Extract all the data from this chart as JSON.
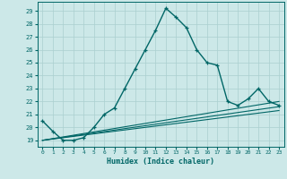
{
  "xlabel": "Humidex (Indice chaleur)",
  "bg_color": "#cce8e8",
  "grid_color": "#aacfcf",
  "line_color": "#006666",
  "xlim": [
    -0.5,
    23.5
  ],
  "ylim": [
    18.5,
    29.7
  ],
  "xticks": [
    0,
    1,
    2,
    3,
    4,
    5,
    6,
    7,
    8,
    9,
    10,
    11,
    12,
    13,
    14,
    15,
    16,
    17,
    18,
    19,
    20,
    21,
    22,
    23
  ],
  "yticks": [
    19,
    20,
    21,
    22,
    23,
    24,
    25,
    26,
    27,
    28,
    29
  ],
  "curve1_x": [
    0,
    1,
    2,
    3,
    4,
    5,
    6,
    7,
    8,
    9,
    10,
    11,
    12,
    13,
    14,
    15,
    16,
    17,
    18,
    19,
    20,
    21,
    22,
    23
  ],
  "curve1_y": [
    20.5,
    19.7,
    19.0,
    19.0,
    19.2,
    20.0,
    21.0,
    21.5,
    23.0,
    24.5,
    26.0,
    27.5,
    29.2,
    28.5,
    27.7,
    26.0,
    25.0,
    24.8,
    22.0,
    21.7,
    22.2,
    23.0,
    22.0,
    21.7
  ],
  "curve2_x": [
    0,
    23
  ],
  "curve2_y": [
    19.0,
    22.0
  ],
  "curve3_x": [
    0,
    23
  ],
  "curve3_y": [
    19.0,
    21.6
  ],
  "curve4_x": [
    0,
    23
  ],
  "curve4_y": [
    19.0,
    21.3
  ]
}
